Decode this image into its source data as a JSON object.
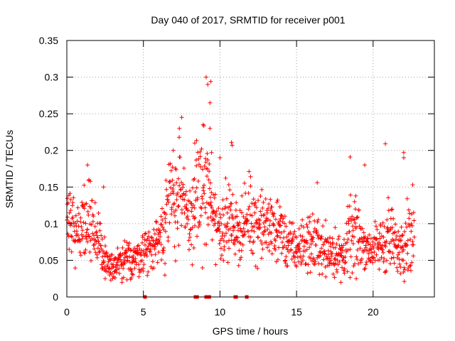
{
  "chart_data": {
    "type": "scatter",
    "title": "Day 040 of 2017, SRMTID for receiver p001",
    "xlabel": "GPS time / hours",
    "ylabel": "SRMTID / TECUs",
    "xlim": [
      0,
      24
    ],
    "ylim": [
      0,
      0.35
    ],
    "xticks": [
      0,
      5,
      10,
      15,
      20
    ],
    "xtick_labels": [
      "0",
      "5",
      "10",
      "15",
      "20"
    ],
    "yticks": [
      0,
      0.05,
      0.1,
      0.15,
      0.2,
      0.25,
      0.3,
      0.35
    ],
    "ytick_labels": [
      "0",
      "0.05",
      "0.1",
      "0.15",
      "0.2",
      "0.25",
      "0.3",
      "0.35"
    ],
    "grid": true,
    "marker": "+",
    "color": "#ff0000",
    "data_range_hours": [
      0,
      22.7
    ],
    "envelope": {
      "hours": [
        0,
        0.5,
        1.0,
        1.5,
        2.0,
        2.5,
        3.0,
        3.5,
        4.0,
        4.5,
        5.0,
        5.5,
        6.0,
        6.5,
        7.0,
        7.5,
        8.0,
        8.5,
        9.0,
        9.5,
        10.0,
        10.5,
        11.0,
        11.5,
        12.0,
        12.5,
        13.0,
        13.5,
        14.0,
        14.5,
        15.0,
        15.5,
        16.0,
        16.5,
        17.0,
        17.5,
        18.0,
        18.5,
        19.0,
        19.5,
        20.0,
        20.5,
        21.0,
        21.5,
        22.0,
        22.5,
        22.7
      ],
      "center": [
        0.1,
        0.095,
        0.1,
        0.11,
        0.08,
        0.05,
        0.04,
        0.045,
        0.05,
        0.055,
        0.06,
        0.065,
        0.08,
        0.11,
        0.14,
        0.13,
        0.1,
        0.14,
        0.15,
        0.12,
        0.09,
        0.11,
        0.09,
        0.095,
        0.11,
        0.1,
        0.095,
        0.1,
        0.085,
        0.07,
        0.065,
        0.07,
        0.075,
        0.07,
        0.065,
        0.06,
        0.055,
        0.08,
        0.085,
        0.07,
        0.065,
        0.07,
        0.085,
        0.065,
        0.08,
        0.09,
        0.08
      ],
      "spread": [
        0.035,
        0.03,
        0.04,
        0.035,
        0.03,
        0.02,
        0.015,
        0.015,
        0.02,
        0.02,
        0.02,
        0.025,
        0.03,
        0.045,
        0.05,
        0.05,
        0.035,
        0.05,
        0.06,
        0.045,
        0.03,
        0.035,
        0.03,
        0.03,
        0.035,
        0.035,
        0.03,
        0.035,
        0.03,
        0.025,
        0.02,
        0.025,
        0.03,
        0.025,
        0.025,
        0.025,
        0.02,
        0.035,
        0.035,
        0.02,
        0.02,
        0.025,
        0.04,
        0.02,
        0.035,
        0.04,
        0.03
      ]
    },
    "peaks": [
      {
        "x": 1.35,
        "y": 0.18
      },
      {
        "x": 1.45,
        "y": 0.16
      },
      {
        "x": 2.4,
        "y": 0.15
      },
      {
        "x": 6.95,
        "y": 0.2
      },
      {
        "x": 7.35,
        "y": 0.23
      },
      {
        "x": 7.5,
        "y": 0.245
      },
      {
        "x": 8.35,
        "y": 0.21
      },
      {
        "x": 8.9,
        "y": 0.235
      },
      {
        "x": 9.1,
        "y": 0.3
      },
      {
        "x": 9.2,
        "y": 0.29
      },
      {
        "x": 9.35,
        "y": 0.265
      },
      {
        "x": 9.4,
        "y": 0.294
      },
      {
        "x": 9.35,
        "y": 0.23
      },
      {
        "x": 9.45,
        "y": 0.197
      },
      {
        "x": 10.0,
        "y": 0.19
      },
      {
        "x": 10.75,
        "y": 0.211
      },
      {
        "x": 10.8,
        "y": 0.207
      },
      {
        "x": 12.0,
        "y": 0.164
      },
      {
        "x": 16.35,
        "y": 0.156
      },
      {
        "x": 18.5,
        "y": 0.191
      },
      {
        "x": 19.45,
        "y": 0.18
      },
      {
        "x": 20.8,
        "y": 0.209
      },
      {
        "x": 22.0,
        "y": 0.197
      },
      {
        "x": 22.0,
        "y": 0.19
      }
    ],
    "troughs": [
      {
        "x": 2.5,
        "y": 0.025
      },
      {
        "x": 2.8,
        "y": 0.03
      },
      {
        "x": 3.6,
        "y": 0.02
      },
      {
        "x": 4.2,
        "y": 0.035
      },
      {
        "x": 17.9,
        "y": 0.02
      },
      {
        "x": 18.9,
        "y": 0.025
      },
      {
        "x": 21.6,
        "y": 0.035
      }
    ],
    "markers_at_zero": {
      "y": 0,
      "points": [
        5.1,
        8.4,
        8.5,
        9.1,
        9.2,
        9.3,
        11.0,
        11.05,
        11.75
      ]
    }
  }
}
